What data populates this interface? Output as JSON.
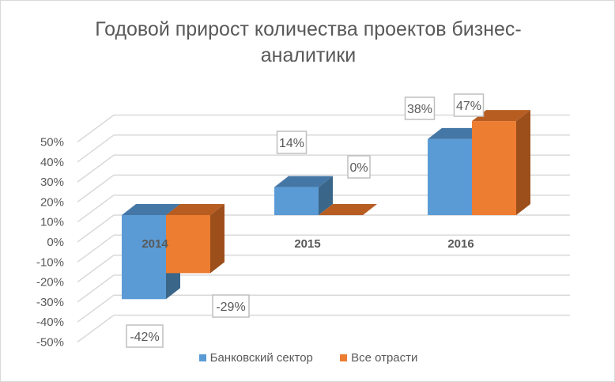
{
  "chart_data": {
    "type": "bar",
    "title": "Годовой прирост количества проектов бизнес-аналитики",
    "title_lines": [
      "Годовой прирост количества проектов бизнес-",
      "аналитики"
    ],
    "categories": [
      "2014",
      "2015",
      "2016"
    ],
    "series": [
      {
        "name": "Банковский сектор",
        "values": [
          -42,
          14,
          38
        ],
        "labels": [
          "-42%",
          "14%",
          "38%"
        ],
        "color": "#5b9bd5",
        "side": "#3a6689",
        "top": "#4577a6"
      },
      {
        "name": "Все отрасти",
        "values": [
          -29,
          0,
          47
        ],
        "labels": [
          "-29%",
          "0%",
          "47%"
        ],
        "color": "#ed7d31",
        "side": "#9c4f1b",
        "top": "#b85d22"
      }
    ],
    "yticks": [
      "50%",
      "40%",
      "30%",
      "20%",
      "10%",
      "0%",
      "-10%",
      "-20%",
      "-30%",
      "-40%",
      "-50%"
    ],
    "ylim": [
      -50,
      50
    ],
    "grid": true,
    "legend": "bottom",
    "style": "3d-clustered-column"
  }
}
